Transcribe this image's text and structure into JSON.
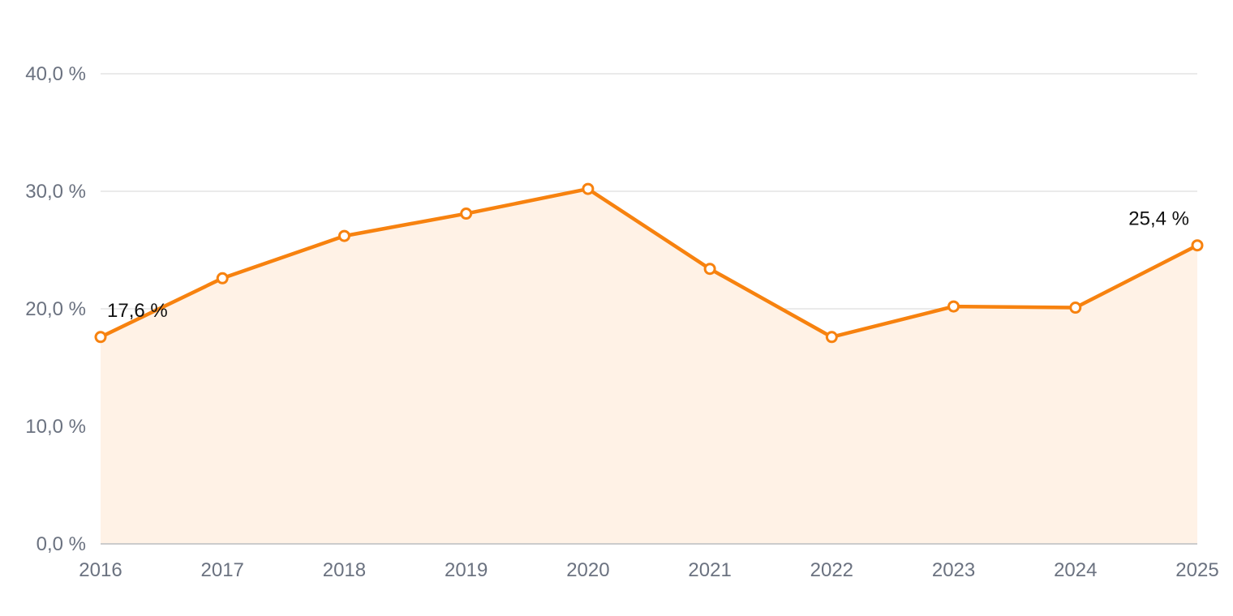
{
  "chart_data": {
    "type": "area",
    "title": "",
    "xlabel": "",
    "ylabel": "",
    "categories": [
      "2016",
      "2017",
      "2018",
      "2019",
      "2020",
      "2021",
      "2022",
      "2023",
      "2024",
      "2025"
    ],
    "series": [
      {
        "values": [
          17.6,
          22.6,
          26.2,
          28.1,
          30.2,
          23.4,
          17.6,
          20.2,
          20.1,
          25.4
        ]
      }
    ],
    "ylim": [
      0,
      40
    ],
    "yticks": [
      {
        "value": 0,
        "label": "0,0 %"
      },
      {
        "value": 10,
        "label": "10,0 %"
      },
      {
        "value": 20,
        "label": "20,0 %"
      },
      {
        "value": 30,
        "label": "30,0 %"
      },
      {
        "value": 40,
        "label": "40,0 %"
      }
    ],
    "data_labels": [
      {
        "index": 0,
        "text": "17,6 %"
      },
      {
        "index": 9,
        "text": "25,4 %"
      }
    ],
    "grid": true,
    "legend": "none",
    "colors": {
      "line": "#f7820f",
      "area": "#fff2e6",
      "grid": "#e3e3e3",
      "axis": "#cccccc"
    }
  }
}
